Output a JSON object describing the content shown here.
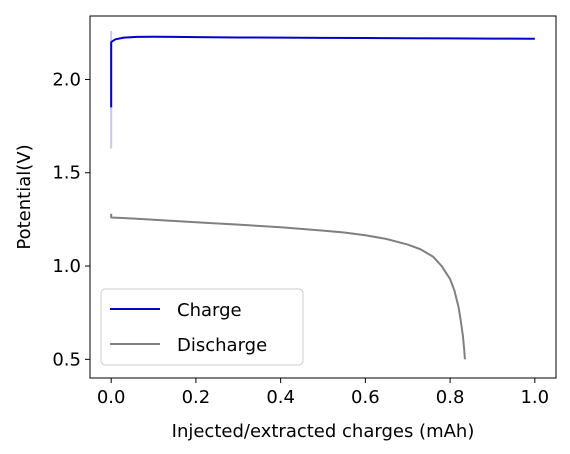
{
  "chart_data": {
    "type": "line",
    "title": "",
    "xlabel": "Injected/extracted charges (mAh)",
    "ylabel": "Potential(V)",
    "xlim": [
      -0.05,
      1.05
    ],
    "ylim": [
      0.4,
      2.34
    ],
    "x_ticks": [
      0.0,
      0.2,
      0.4,
      0.6,
      0.8,
      1.0
    ],
    "x_tick_labels": [
      "0.0",
      "0.2",
      "0.4",
      "0.6",
      "0.8",
      "1.0"
    ],
    "y_ticks": [
      0.5,
      1.0,
      1.5,
      2.0
    ],
    "y_tick_labels": [
      "0.5",
      "1.0",
      "1.5",
      "2.0"
    ],
    "grid": false,
    "legend_position": "bottom-left",
    "series": [
      {
        "name": "Charge",
        "color": "#0000cc",
        "x": [
          0.0,
          0.0,
          0.0,
          0.0,
          0.003,
          0.01,
          0.03,
          0.06,
          0.1,
          0.15,
          0.2,
          0.3,
          0.4,
          0.5,
          0.6,
          0.7,
          0.8,
          0.9,
          1.0
        ],
        "y": [
          1.85,
          2.0,
          2.15,
          2.2,
          2.205,
          2.215,
          2.224,
          2.228,
          2.229,
          2.228,
          2.227,
          2.225,
          2.224,
          2.223,
          2.222,
          2.221,
          2.22,
          2.219,
          2.218
        ]
      },
      {
        "name": "Discharge",
        "color": "#808080",
        "x": [
          0.0,
          0.0,
          0.0,
          0.05,
          0.1,
          0.2,
          0.3,
          0.4,
          0.5,
          0.55,
          0.6,
          0.65,
          0.7,
          0.73,
          0.76,
          0.78,
          0.8,
          0.81,
          0.82,
          0.825,
          0.83,
          0.833,
          0.835
        ],
        "y": [
          1.28,
          1.265,
          1.26,
          1.255,
          1.248,
          1.235,
          1.222,
          1.208,
          1.19,
          1.18,
          1.165,
          1.145,
          1.115,
          1.09,
          1.05,
          1.0,
          0.93,
          0.87,
          0.78,
          0.71,
          0.63,
          0.56,
          0.5
        ]
      }
    ],
    "artifacts": [
      {
        "color": "#c8c8f0",
        "x": [
          0.0,
          0.0
        ],
        "y": [
          1.63,
          2.26
        ]
      }
    ]
  }
}
